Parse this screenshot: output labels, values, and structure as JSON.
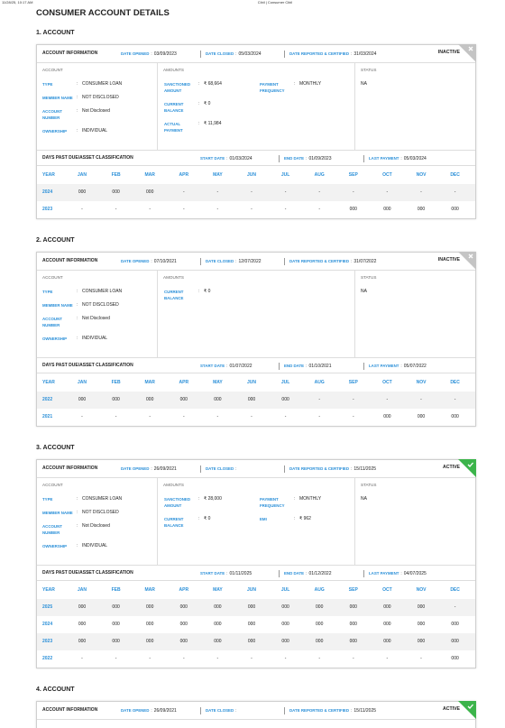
{
  "header": {
    "timestamp": "11/28/25, 10:17 AM",
    "site": "Cibil | Consumer Cibil"
  },
  "title": "CONSUMER ACCOUNT DETAILS",
  "labels": {
    "account_information": "ACCOUNT INFORMATION",
    "date_opened": "DATE OPENED",
    "date_closed": "DATE CLOSED",
    "date_reported": "DATE REPORTED & CERTIFIED",
    "account": "ACCOUNT",
    "amounts": "AMOUNTS",
    "status": "STATUS",
    "dpd": "DAYS PAST DUE/ASSET CLASSIFICATION",
    "start_date": "START DATE",
    "end_date": "END DATE",
    "last_payment": "LAST PAYMENT",
    "colon": ":",
    "year": "YEAR",
    "months": [
      "JAN",
      "FEB",
      "MAR",
      "APR",
      "MAY",
      "JUN",
      "JUL",
      "AUG",
      "SEP",
      "OCT",
      "NOV",
      "DEC"
    ]
  },
  "accounts": [
    {
      "heading": "1. ACCOUNT",
      "date_opened": "03/09/2023",
      "date_closed": "05/03/2024",
      "date_reported": "31/03/2024",
      "status_badge": "INACTIVE",
      "active": false,
      "account_fields": [
        {
          "label": "TYPE",
          "value": "CONSUMER LOAN"
        },
        {
          "label": "MEMBER NAME",
          "value": "NOT DISCLOSED"
        },
        {
          "label": "ACCOUNT NUMBER",
          "value": "Not Disclosed"
        },
        {
          "label": "OWNERSHIP",
          "value": "INDIVIDUAL"
        }
      ],
      "amounts_left": [
        {
          "label": "SANCTIONED AMOUNT",
          "value": "₹ 68,664"
        },
        {
          "label": "CURRENT BALANCE",
          "value": "₹ 0"
        },
        {
          "label": "ACTUAL PAYMENT",
          "value": "₹ 11,984"
        }
      ],
      "amounts_right": [
        {
          "label": "PAYMENT FREQUENCY",
          "value": "MONTHLY"
        }
      ],
      "status": "NA",
      "start_date": "01/03/2024",
      "end_date": "01/09/2023",
      "last_payment": "05/03/2024",
      "rows": [
        {
          "year": "2024",
          "values": [
            "000",
            "000",
            "000",
            "-",
            "-",
            "-",
            "-",
            "-",
            "-",
            "-",
            "-",
            "-"
          ]
        },
        {
          "year": "2023",
          "values": [
            "-",
            "-",
            "-",
            "-",
            "-",
            "-",
            "-",
            "-",
            "000",
            "000",
            "000",
            "000"
          ]
        }
      ]
    },
    {
      "heading": "2. ACCOUNT",
      "date_opened": "07/10/2021",
      "date_closed": "12/07/2022",
      "date_reported": "31/07/2022",
      "status_badge": "INACTIVE",
      "active": false,
      "account_fields": [
        {
          "label": "TYPE",
          "value": "CONSUMER LOAN"
        },
        {
          "label": "MEMBER NAME",
          "value": "NOT DISCLOSED"
        },
        {
          "label": "ACCOUNT NUMBER",
          "value": "Not Disclosed"
        },
        {
          "label": "OWNERSHIP",
          "value": "INDIVIDUAL"
        }
      ],
      "amounts_left": [
        {
          "label": "CURRENT BALANCE",
          "value": "₹ 0"
        }
      ],
      "amounts_right": [],
      "status": "NA",
      "start_date": "01/07/2022",
      "end_date": "01/10/2021",
      "last_payment": "05/07/2022",
      "rows": [
        {
          "year": "2022",
          "values": [
            "000",
            "000",
            "000",
            "000",
            "000",
            "000",
            "000",
            "-",
            "-",
            "-",
            "-",
            "-"
          ]
        },
        {
          "year": "2021",
          "values": [
            "-",
            "-",
            "-",
            "-",
            "-",
            "-",
            "-",
            "-",
            "-",
            "000",
            "000",
            "000"
          ]
        }
      ]
    },
    {
      "heading": "3. ACCOUNT",
      "date_opened": "26/09/2021",
      "date_closed": null,
      "date_reported": "15/11/2025",
      "status_badge": "ACTIVE",
      "active": true,
      "account_fields": [
        {
          "label": "TYPE",
          "value": "CONSUMER LOAN"
        },
        {
          "label": "MEMBER NAME",
          "value": "NOT DISCLOSED"
        },
        {
          "label": "ACCOUNT NUMBER",
          "value": "Not Disclosed"
        },
        {
          "label": "OWNERSHIP",
          "value": "INDIVIDUAL"
        }
      ],
      "amounts_left": [
        {
          "label": "SANCTIONED AMOUNT",
          "value": "₹ 28,000"
        },
        {
          "label": "CURRENT BALANCE",
          "value": "₹ 0"
        }
      ],
      "amounts_right": [
        {
          "label": "PAYMENT FREQUENCY",
          "value": "MONTHLY"
        },
        {
          "label": "EMI",
          "value": "₹ 962"
        }
      ],
      "status": "NA",
      "start_date": "01/11/2025",
      "end_date": "01/12/2022",
      "last_payment": "04/07/2025",
      "rows": [
        {
          "year": "2025",
          "values": [
            "000",
            "000",
            "000",
            "000",
            "000",
            "000",
            "000",
            "000",
            "000",
            "000",
            "000",
            "-"
          ]
        },
        {
          "year": "2024",
          "values": [
            "000",
            "000",
            "000",
            "000",
            "000",
            "000",
            "000",
            "000",
            "000",
            "000",
            "000",
            "000"
          ]
        },
        {
          "year": "2023",
          "values": [
            "000",
            "000",
            "000",
            "000",
            "000",
            "000",
            "000",
            "000",
            "000",
            "000",
            "000",
            "000"
          ]
        },
        {
          "year": "2022",
          "values": [
            "-",
            "-",
            "-",
            "-",
            "-",
            "-",
            "-",
            "-",
            "-",
            "-",
            "-",
            "000"
          ]
        }
      ]
    },
    {
      "heading": "4. ACCOUNT",
      "date_opened": "26/09/2021",
      "date_closed": null,
      "date_reported": "15/11/2025",
      "status_badge": "ACTIVE",
      "active": true
    }
  ]
}
